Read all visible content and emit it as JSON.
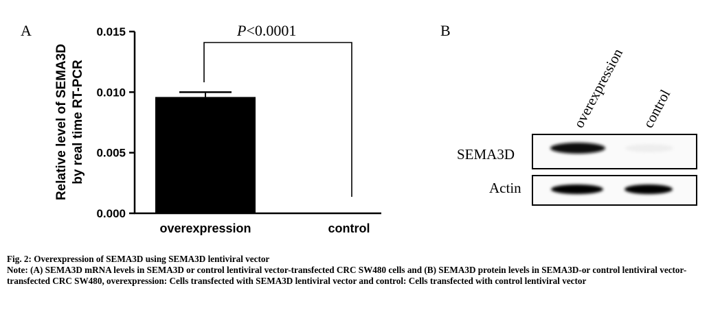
{
  "panels": {
    "a_label": "A",
    "b_label": "B"
  },
  "chart_data": {
    "type": "bar",
    "categories": [
      "overexpression",
      "control"
    ],
    "values": [
      0.0096,
      0.0
    ],
    "errors": [
      0.0004,
      0.0
    ],
    "ylabel_line1": "Relative level of SEMA3D",
    "ylabel_line2": "by real time RT-PCR",
    "ylim": [
      0,
      0.015
    ],
    "yticks": [
      "0.000",
      "0.005",
      "0.010",
      "0.015"
    ],
    "ytick_values": [
      0,
      0.005,
      0.01,
      0.015
    ],
    "grid": false,
    "bar_color": "#000000",
    "significance": {
      "prefix": "P",
      "text": "<0.0001"
    }
  },
  "blot": {
    "lanes": [
      "overexpression",
      "control"
    ],
    "rows": [
      {
        "label": "SEMA3D",
        "intensity": [
          1.0,
          0.1
        ]
      },
      {
        "label": "Actin",
        "intensity": [
          1.0,
          1.0
        ]
      }
    ]
  },
  "caption": {
    "title": "Fig. 2: Overexpression of SEMA3D using SEMA3D lentiviral vector",
    "note": "Note: (A) SEMA3D mRNA levels in SEMA3D or control lentiviral vector-transfected CRC SW480 cells and (B) SEMA3D protein levels in SEMA3D-or control lentiviral vector-transfected CRC SW480, overexpression: Cells transfected with SEMA3D lentiviral vector and control: Cells transfected with control lentiviral vector"
  }
}
